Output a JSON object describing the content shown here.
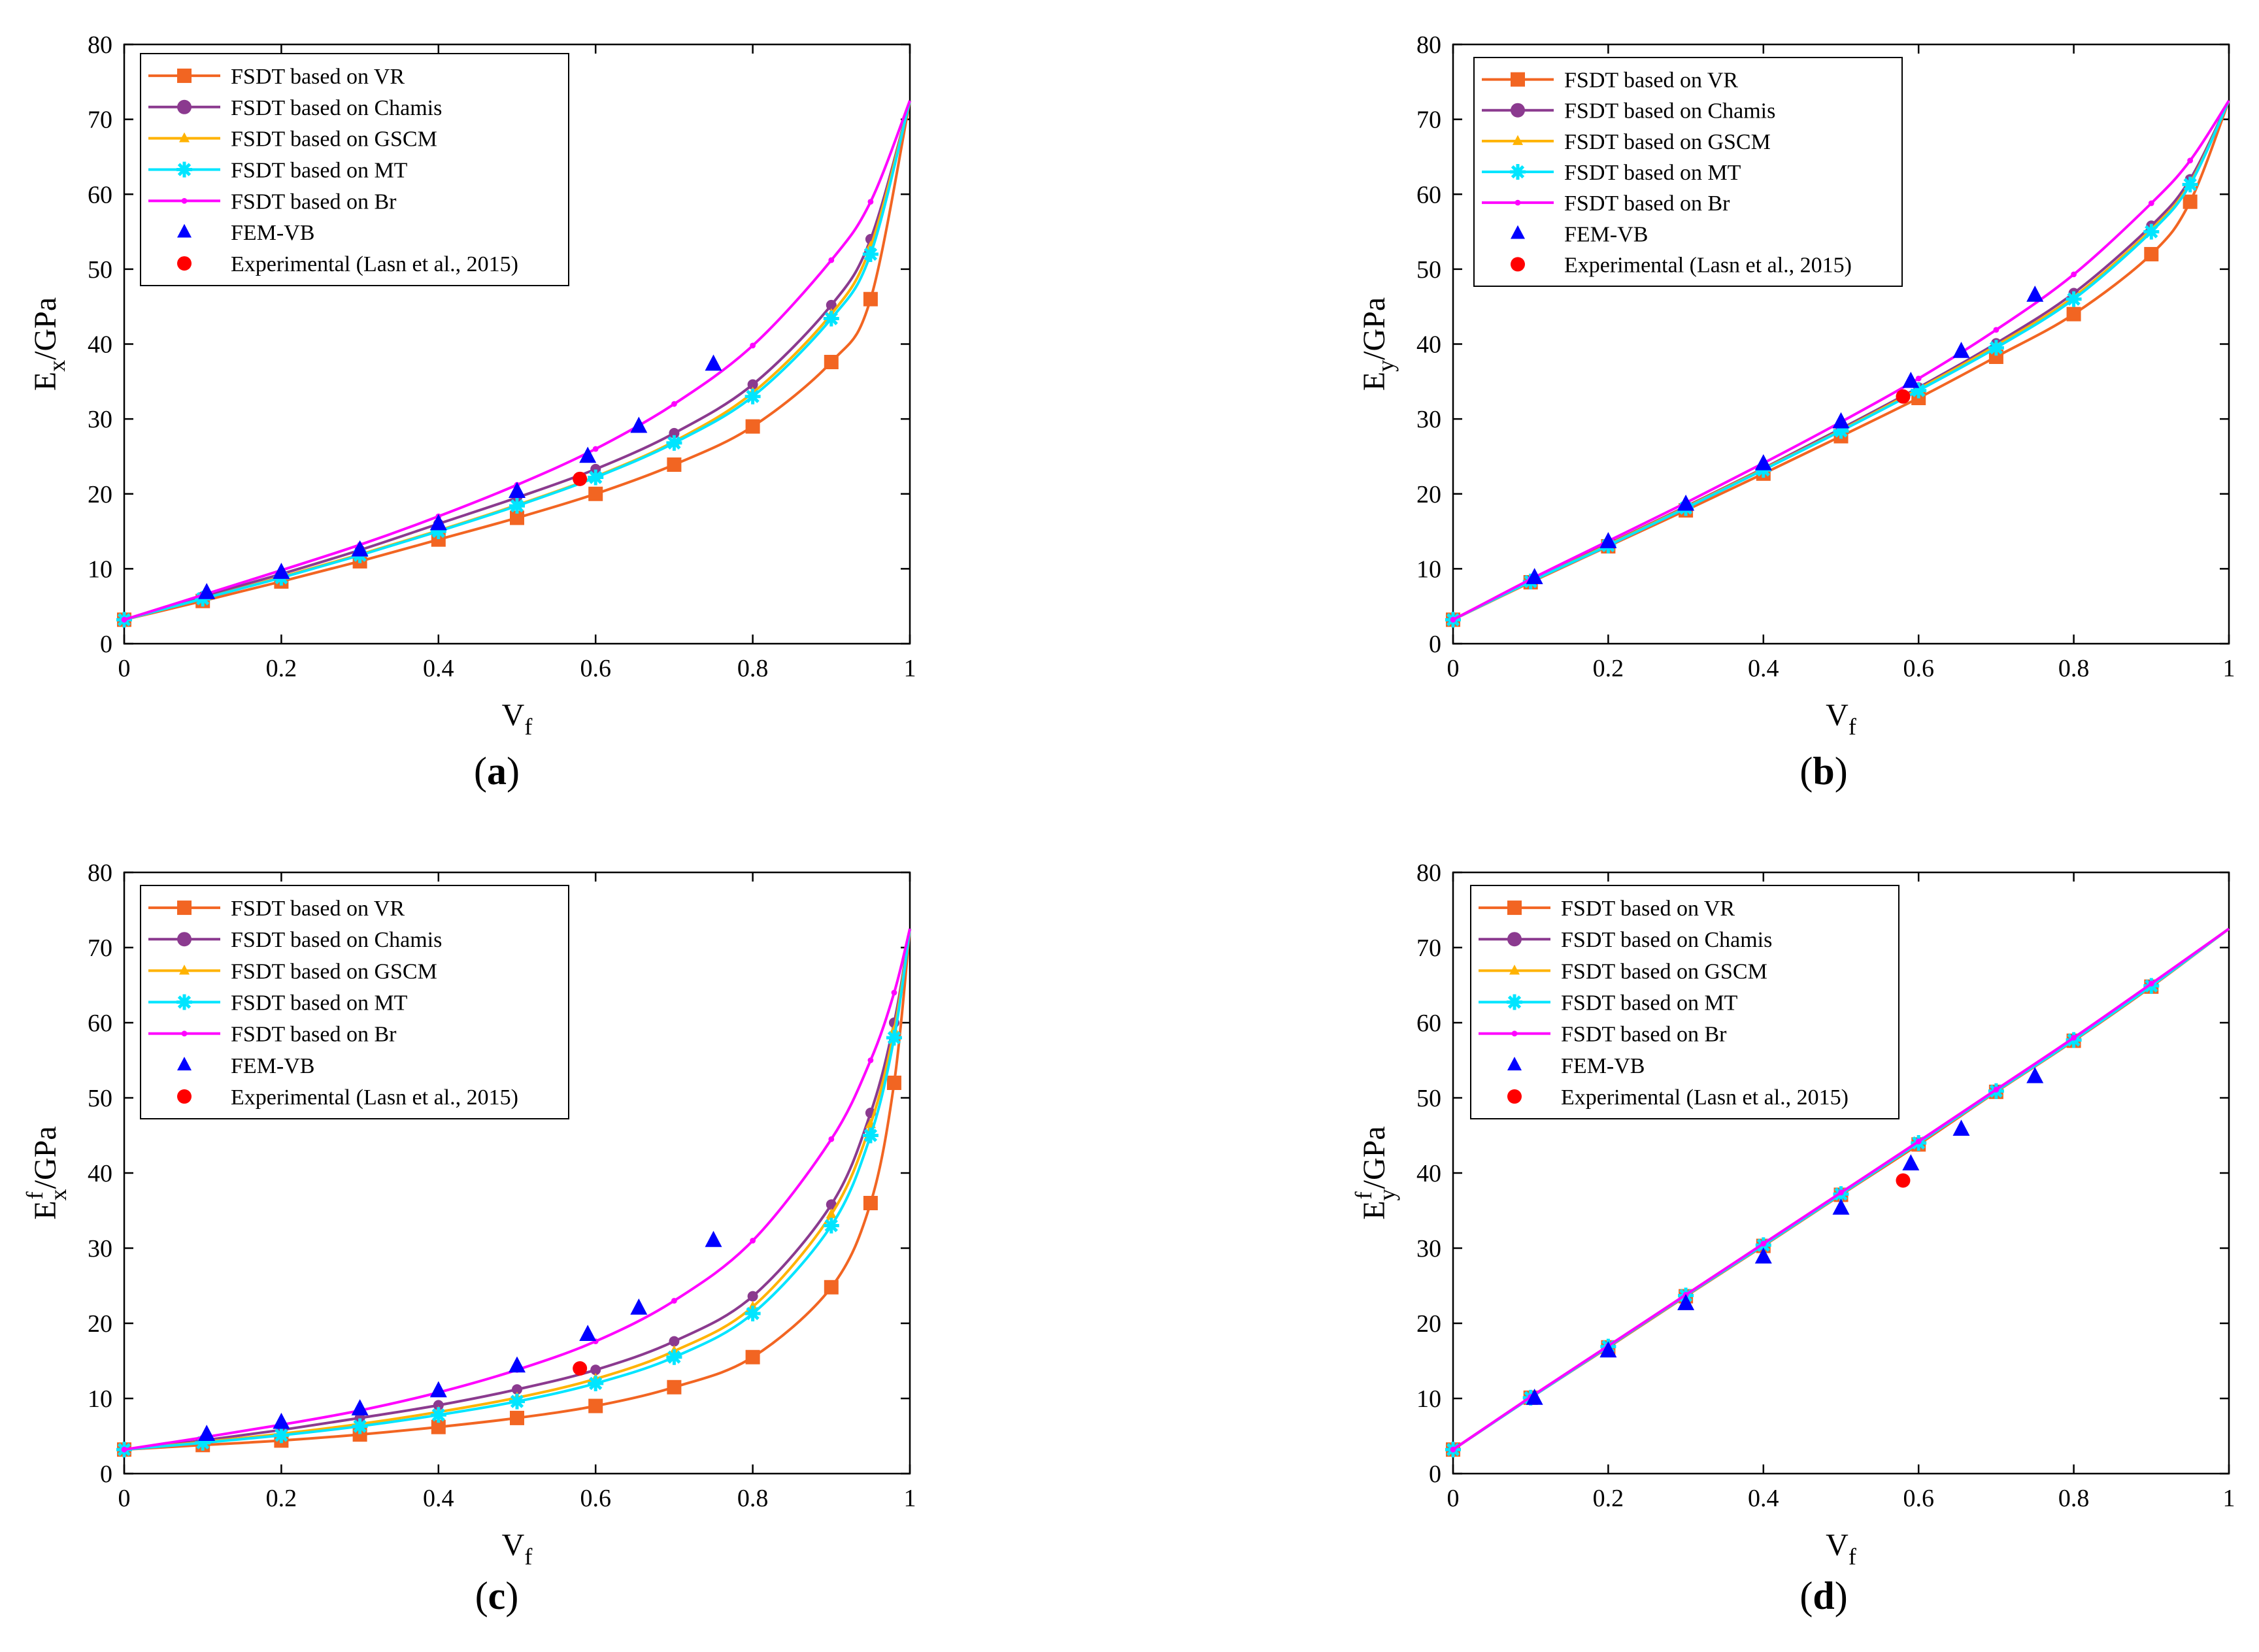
{
  "figure": {
    "series_styles": [
      {
        "key": "VR",
        "color": "#f26522",
        "marker": "square",
        "line": true
      },
      {
        "key": "Chamis",
        "color": "#8b3a8f",
        "marker": "circle",
        "line": true
      },
      {
        "key": "GSCM",
        "color": "#ffb300",
        "marker": "triangle",
        "line": true
      },
      {
        "key": "MT",
        "color": "#00e5ff",
        "marker": "star",
        "line": true
      },
      {
        "key": "Br",
        "color": "#ff00ff",
        "marker": "dot",
        "line": true
      },
      {
        "key": "FEM",
        "color": "#0000ff",
        "marker": "triangle",
        "line": false
      },
      {
        "key": "EXP",
        "color": "#ff0000",
        "marker": "circle",
        "line": false
      }
    ]
  },
  "chart_data": [
    {
      "id": "a",
      "type": "line",
      "caption_open": "(",
      "caption_letter": "a",
      "caption_close": ")",
      "ylabel_main": "E",
      "ylabel_sub": "x",
      "ylabel_sup": "",
      "ylabel_unit": "/GPa",
      "xlabel_main": "V",
      "xlabel_sub": "f",
      "xlim": [
        0,
        1
      ],
      "ylim": [
        0,
        80
      ],
      "xticks": [
        "0",
        "0.2",
        "0.4",
        "0.6",
        "0.8",
        "1"
      ],
      "yticks": [
        "0",
        "10",
        "20",
        "30",
        "40",
        "50",
        "60",
        "70",
        "80"
      ],
      "legend": [
        "FSDT based on VR",
        "FSDT based on Chamis",
        "FSDT based on GSCM",
        "FSDT based on MT",
        "FSDT based on Br",
        "FEM-VB",
        "Experimental (Lasn et al., 2015)"
      ],
      "series": [
        {
          "name": "FSDT based on VR",
          "x": [
            0,
            0.1,
            0.2,
            0.3,
            0.4,
            0.5,
            0.6,
            0.7,
            0.8,
            0.9,
            0.95,
            1
          ],
          "y": [
            3.2,
            5.7,
            8.3,
            11,
            13.9,
            16.8,
            20,
            23.9,
            29,
            37.6,
            46,
            72.5
          ]
        },
        {
          "name": "FSDT based on Chamis",
          "x": [
            0,
            0.1,
            0.2,
            0.3,
            0.4,
            0.5,
            0.6,
            0.7,
            0.8,
            0.9,
            0.95,
            1
          ],
          "y": [
            3.2,
            6.3,
            9.3,
            12.5,
            16,
            19.5,
            23.3,
            28.1,
            34.6,
            45.2,
            54,
            72.5
          ]
        },
        {
          "name": "FSDT based on GSCM",
          "x": [
            0,
            0.1,
            0.2,
            0.3,
            0.4,
            0.5,
            0.6,
            0.7,
            0.8,
            0.9,
            0.95,
            1
          ],
          "y": [
            3.2,
            6,
            8.9,
            11.9,
            15.1,
            18.5,
            22.3,
            27,
            33.5,
            44,
            53,
            72.5
          ]
        },
        {
          "name": "FSDT based on MT",
          "x": [
            0,
            0.1,
            0.2,
            0.3,
            0.4,
            0.5,
            0.6,
            0.7,
            0.8,
            0.9,
            0.95,
            1
          ],
          "y": [
            3.2,
            6,
            8.8,
            11.8,
            15,
            18.4,
            22.2,
            26.8,
            33,
            43.4,
            52,
            72.5
          ]
        },
        {
          "name": "FSDT based on Br",
          "x": [
            0,
            0.1,
            0.2,
            0.3,
            0.4,
            0.5,
            0.6,
            0.7,
            0.8,
            0.9,
            0.95,
            1
          ],
          "y": [
            3.2,
            6.5,
            9.8,
            13.2,
            17,
            21.2,
            26,
            32,
            39.8,
            51.2,
            59,
            72.5
          ]
        },
        {
          "name": "FEM-VB",
          "x": [
            0.105,
            0.2,
            0.3,
            0.4,
            0.5,
            0.59,
            0.655,
            0.75
          ],
          "y": [
            6.8,
            9.5,
            12.5,
            16,
            20.3,
            25,
            29,
            37.3
          ]
        },
        {
          "name": "Experimental (Lasn et al., 2015)",
          "x": [
            0.58
          ],
          "y": [
            22
          ]
        }
      ]
    },
    {
      "id": "b",
      "type": "line",
      "caption_open": "(",
      "caption_letter": "b",
      "caption_close": ")",
      "ylabel_main": "E",
      "ylabel_sub": "y",
      "ylabel_sup": "",
      "ylabel_unit": "/GPa",
      "xlabel_main": "V",
      "xlabel_sub": "f",
      "xlim": [
        0,
        1
      ],
      "ylim": [
        0,
        80
      ],
      "xticks": [
        "0",
        "0.2",
        "0.4",
        "0.6",
        "0.8",
        "1"
      ],
      "yticks": [
        "0",
        "10",
        "20",
        "30",
        "40",
        "50",
        "60",
        "70",
        "80"
      ],
      "legend": [
        "FSDT based on VR",
        "FSDT based on Chamis",
        "FSDT based on GSCM",
        "FSDT based on MT",
        "FSDT based on Br",
        "FEM-VB",
        "Experimental (Lasn et al., 2015)"
      ],
      "series": [
        {
          "name": "FSDT based on VR",
          "x": [
            0,
            0.1,
            0.2,
            0.3,
            0.4,
            0.5,
            0.6,
            0.7,
            0.8,
            0.9,
            0.95,
            1
          ],
          "y": [
            3.2,
            8.2,
            13,
            17.8,
            22.7,
            27.7,
            32.8,
            38.3,
            44,
            52,
            59,
            72.5
          ]
        },
        {
          "name": "FSDT based on Chamis",
          "x": [
            0,
            0.1,
            0.2,
            0.3,
            0.4,
            0.5,
            0.6,
            0.7,
            0.8,
            0.9,
            0.95,
            1
          ],
          "y": [
            3.2,
            8.4,
            13.3,
            18.3,
            23.4,
            28.7,
            34.2,
            40.1,
            46.8,
            55.8,
            62,
            72.5
          ]
        },
        {
          "name": "FSDT based on GSCM",
          "x": [
            0,
            0.1,
            0.2,
            0.3,
            0.4,
            0.5,
            0.6,
            0.7,
            0.8,
            0.9,
            0.95,
            1
          ],
          "y": [
            3.2,
            8.3,
            13.2,
            18.2,
            23.3,
            28.5,
            34,
            39.8,
            46.3,
            55.3,
            61.5,
            72.5
          ]
        },
        {
          "name": "FSDT based on MT",
          "x": [
            0,
            0.1,
            0.2,
            0.3,
            0.4,
            0.5,
            0.6,
            0.7,
            0.8,
            0.9,
            0.95,
            1
          ],
          "y": [
            3.2,
            8.3,
            13.1,
            18.1,
            23.2,
            28.4,
            33.8,
            39.5,
            46,
            55,
            61.3,
            72.5
          ]
        },
        {
          "name": "FSDT based on Br",
          "x": [
            0,
            0.1,
            0.2,
            0.3,
            0.4,
            0.5,
            0.6,
            0.7,
            0.8,
            0.9,
            0.95,
            1
          ],
          "y": [
            3.2,
            8.6,
            13.7,
            18.8,
            24.1,
            29.6,
            35.4,
            41.9,
            49.3,
            58.8,
            64.5,
            72.5
          ]
        },
        {
          "name": "FEM-VB",
          "x": [
            0.105,
            0.2,
            0.3,
            0.4,
            0.5,
            0.59,
            0.655,
            0.75
          ],
          "y": [
            8.8,
            13.6,
            18.6,
            24,
            29.6,
            35,
            39,
            46.5
          ]
        },
        {
          "name": "Experimental (Lasn et al., 2015)",
          "x": [
            0.58
          ],
          "y": [
            33
          ]
        }
      ]
    },
    {
      "id": "c",
      "type": "line",
      "caption_open": "(",
      "caption_letter": "c",
      "caption_close": ")",
      "ylabel_main": "E",
      "ylabel_sub": "x",
      "ylabel_sup": "f",
      "ylabel_unit": "/GPa",
      "xlabel_main": "V",
      "xlabel_sub": "f",
      "xlim": [
        0,
        1
      ],
      "ylim": [
        0,
        80
      ],
      "xticks": [
        "0",
        "0.2",
        "0.4",
        "0.6",
        "0.8",
        "1"
      ],
      "yticks": [
        "0",
        "10",
        "20",
        "30",
        "40",
        "50",
        "60",
        "70",
        "80"
      ],
      "legend": [
        "FSDT based on VR",
        "FSDT based on Chamis",
        "FSDT based on GSCM",
        "FSDT based on MT",
        "FSDT based on Br",
        "FEM-VB",
        "Experimental (Lasn et al., 2015)"
      ],
      "series": [
        {
          "name": "FSDT based on VR",
          "x": [
            0,
            0.1,
            0.2,
            0.3,
            0.4,
            0.5,
            0.6,
            0.7,
            0.8,
            0.9,
            0.95,
            0.98,
            1
          ],
          "y": [
            3.2,
            3.8,
            4.4,
            5.2,
            6.2,
            7.4,
            9,
            11.5,
            15.5,
            24.8,
            36,
            52,
            72.5
          ]
        },
        {
          "name": "FSDT based on Chamis",
          "x": [
            0,
            0.1,
            0.2,
            0.3,
            0.4,
            0.5,
            0.6,
            0.7,
            0.8,
            0.9,
            0.95,
            0.98,
            1
          ],
          "y": [
            3.2,
            4.4,
            5.8,
            7.4,
            9.1,
            11.2,
            13.8,
            17.6,
            23.6,
            35.8,
            48,
            60,
            72.5
          ]
        },
        {
          "name": "FSDT based on GSCM",
          "x": [
            0,
            0.1,
            0.2,
            0.3,
            0.4,
            0.5,
            0.6,
            0.7,
            0.8,
            0.9,
            0.95,
            0.98,
            1
          ],
          "y": [
            3.2,
            4.2,
            5.3,
            6.6,
            8.2,
            10.1,
            12.6,
            16.3,
            22.2,
            34.5,
            46.5,
            59,
            72.5
          ]
        },
        {
          "name": "FSDT based on MT",
          "x": [
            0,
            0.1,
            0.2,
            0.3,
            0.4,
            0.5,
            0.6,
            0.7,
            0.8,
            0.9,
            0.95,
            0.98,
            1
          ],
          "y": [
            3.2,
            4.1,
            5.1,
            6.3,
            7.8,
            9.6,
            12,
            15.5,
            21.3,
            33,
            45,
            58,
            72.5
          ]
        },
        {
          "name": "FSDT based on Br",
          "x": [
            0,
            0.1,
            0.2,
            0.3,
            0.4,
            0.5,
            0.6,
            0.7,
            0.8,
            0.9,
            0.95,
            0.98,
            1
          ],
          "y": [
            3.2,
            4.8,
            6.5,
            8.4,
            10.8,
            13.8,
            17.6,
            23,
            31,
            44.5,
            55,
            64,
            72.5
          ]
        },
        {
          "name": "FEM-VB",
          "x": [
            0.105,
            0.2,
            0.3,
            0.4,
            0.5,
            0.59,
            0.655,
            0.75
          ],
          "y": [
            5.2,
            6.8,
            8.6,
            11,
            14.3,
            18.5,
            22,
            31
          ]
        },
        {
          "name": "Experimental (Lasn et al., 2015)",
          "x": [
            0.58
          ],
          "y": [
            14
          ]
        }
      ]
    },
    {
      "id": "d",
      "type": "line",
      "caption_open": "(",
      "caption_letter": "d",
      "caption_close": ")",
      "ylabel_main": "E",
      "ylabel_sub": "y",
      "ylabel_sup": "f",
      "ylabel_unit": "/GPa",
      "xlabel_main": "V",
      "xlabel_sub": "f",
      "xlim": [
        0,
        1
      ],
      "ylim": [
        0,
        80
      ],
      "xticks": [
        "0",
        "0.2",
        "0.4",
        "0.6",
        "0.8",
        "1"
      ],
      "yticks": [
        "0",
        "10",
        "20",
        "30",
        "40",
        "50",
        "60",
        "70",
        "80"
      ],
      "legend": [
        "FSDT based on VR",
        "FSDT based on Chamis",
        "FSDT based on GSCM",
        "FSDT based on MT",
        "FSDT based on Br",
        "FEM-VB",
        "Experimental (Lasn et al., 2015)"
      ],
      "series": [
        {
          "name": "FSDT based on VR",
          "x": [
            0,
            0.1,
            0.2,
            0.3,
            0.4,
            0.5,
            0.6,
            0.7,
            0.8,
            0.9,
            1
          ],
          "y": [
            3.2,
            10.1,
            16.8,
            23.6,
            30.3,
            37.1,
            43.8,
            50.8,
            57.6,
            64.8,
            72.5
          ]
        },
        {
          "name": "FSDT based on Chamis",
          "x": [
            0,
            0.1,
            0.2,
            0.3,
            0.4,
            0.5,
            0.6,
            0.7,
            0.8,
            0.9,
            1
          ],
          "y": [
            3.2,
            10.1,
            16.9,
            23.7,
            30.4,
            37.2,
            44,
            51,
            57.8,
            65,
            72.5
          ]
        },
        {
          "name": "FSDT based on GSCM",
          "x": [
            0,
            0.1,
            0.2,
            0.3,
            0.4,
            0.5,
            0.6,
            0.7,
            0.8,
            0.9,
            1
          ],
          "y": [
            3.2,
            10.1,
            16.9,
            23.7,
            30.4,
            37.2,
            44,
            50.9,
            57.7,
            64.9,
            72.5
          ]
        },
        {
          "name": "FSDT based on MT",
          "x": [
            0,
            0.1,
            0.2,
            0.3,
            0.4,
            0.5,
            0.6,
            0.7,
            0.8,
            0.9,
            1
          ],
          "y": [
            3.2,
            10.1,
            16.9,
            23.7,
            30.4,
            37.2,
            44,
            50.9,
            57.7,
            64.9,
            72.5
          ]
        },
        {
          "name": "FSDT based on Br",
          "x": [
            0,
            0.1,
            0.2,
            0.3,
            0.4,
            0.5,
            0.6,
            0.7,
            0.8,
            0.9,
            1
          ],
          "y": [
            3.2,
            10.2,
            17,
            23.8,
            30.6,
            37.4,
            44.2,
            51.1,
            58,
            65.2,
            72.5
          ]
        },
        {
          "name": "FEM-VB",
          "x": [
            0.105,
            0.2,
            0.3,
            0.4,
            0.5,
            0.59,
            0.655,
            0.75
          ],
          "y": [
            10,
            16.3,
            22.6,
            28.8,
            35.3,
            41.2,
            45.8,
            52.8
          ]
        },
        {
          "name": "Experimental (Lasn et al., 2015)",
          "x": [
            0.58
          ],
          "y": [
            39
          ]
        }
      ]
    }
  ]
}
